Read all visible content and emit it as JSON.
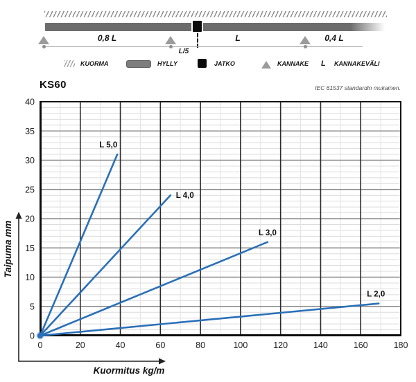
{
  "diagram": {
    "spans": [
      {
        "label": "0,8 L"
      },
      {
        "label": "L"
      },
      {
        "label": "0,4 L"
      }
    ],
    "joint_offset_label": "L/5",
    "legend": [
      {
        "symbol": "hatch",
        "label": "KUORMA"
      },
      {
        "symbol": "bar",
        "label": "HYLLY"
      },
      {
        "symbol": "square",
        "label": "JATKO"
      },
      {
        "symbol": "triangle",
        "label": "KANNAKE"
      },
      {
        "symbol": "letter",
        "symbol_label": "L",
        "label": "KANNAKEVÄLI"
      }
    ]
  },
  "chart": {
    "title": "KS60",
    "standard_note": "IEC 61537 standardin mukainen."
  },
  "chart_data": {
    "type": "line",
    "title": "KS60",
    "xlabel": "Kuormitus kg/m",
    "ylabel": "Taipuma mm",
    "xlim": [
      0,
      180
    ],
    "ylim": [
      0,
      40
    ],
    "x_ticks": [
      0,
      20,
      40,
      60,
      80,
      100,
      120,
      140,
      160,
      180
    ],
    "y_ticks": [
      0,
      5,
      10,
      15,
      20,
      25,
      30,
      35,
      40
    ],
    "x_minor_step": 10,
    "y_minor_step": 1,
    "grid": true,
    "legend_position": "inline-labels",
    "line_color": "#2a70b8",
    "series": [
      {
        "name": "L 5,0",
        "points": [
          [
            0,
            0
          ],
          [
            38.5,
            31
          ]
        ],
        "label_anchor": "middle",
        "label_dx": -13,
        "label_dy": -10
      },
      {
        "name": "L 4,0",
        "points": [
          [
            0,
            0
          ],
          [
            65,
            24
          ]
        ],
        "label_anchor": "start",
        "label_dx": 8,
        "label_dy": 4
      },
      {
        "name": "L 3,0",
        "points": [
          [
            0,
            0
          ],
          [
            113.5,
            16
          ]
        ],
        "label_anchor": "middle",
        "label_dx": 0,
        "label_dy": -10
      },
      {
        "name": "L 2,0",
        "points": [
          [
            0,
            0
          ],
          [
            169,
            5.5
          ]
        ],
        "label_anchor": "middle",
        "label_dx": -4,
        "label_dy": -10
      }
    ]
  }
}
